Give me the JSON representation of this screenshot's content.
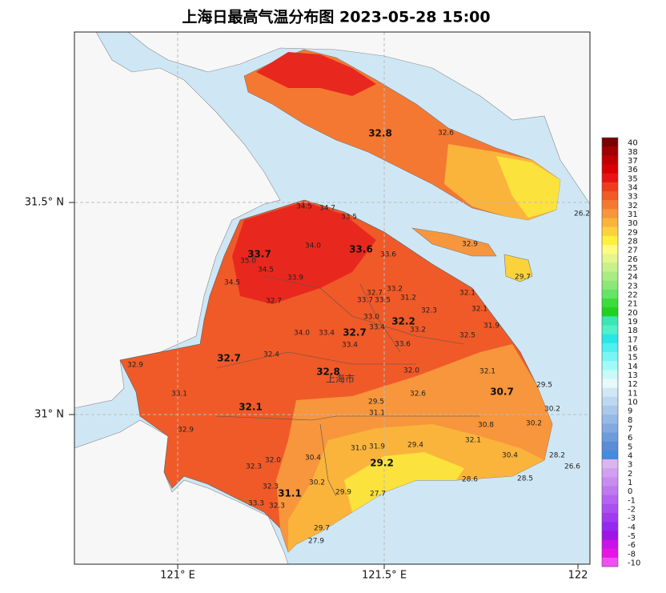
{
  "title": "上海日最高气温分布图 2023-05-28 15:00",
  "map": {
    "lat_labels": [
      "31.5° N",
      "31° N"
    ],
    "lon_labels": [
      "121° E",
      "121.5° E",
      "122"
    ],
    "city_label": "上海市",
    "stations": [
      {
        "label": "32.8",
        "bold": true
      },
      {
        "label": "32.6",
        "bold": false
      },
      {
        "label": "26.2",
        "bold": false
      },
      {
        "label": "32.9",
        "bold": false
      },
      {
        "label": "29.7",
        "bold": false
      },
      {
        "label": "34.5",
        "bold": false
      },
      {
        "label": "34.7",
        "bold": false
      },
      {
        "label": "33.5",
        "bold": false
      },
      {
        "label": "34.0",
        "bold": false
      },
      {
        "label": "33.7",
        "bold": true
      },
      {
        "label": "35.0",
        "bold": false
      },
      {
        "label": "33.6",
        "bold": true
      },
      {
        "label": "33.6",
        "bold": false
      },
      {
        "label": "34.5",
        "bold": false
      },
      {
        "label": "33.9",
        "bold": false
      },
      {
        "label": "34.5",
        "bold": false
      },
      {
        "label": "32.7",
        "bold": false
      },
      {
        "label": "32.7",
        "bold": false
      },
      {
        "label": "33.2",
        "bold": false
      },
      {
        "label": "33.7",
        "bold": false
      },
      {
        "label": "33.5",
        "bold": false
      },
      {
        "label": "31.2",
        "bold": false
      },
      {
        "label": "32.1",
        "bold": false
      },
      {
        "label": "32.3",
        "bold": false
      },
      {
        "label": "32.1",
        "bold": false
      },
      {
        "label": "33.0",
        "bold": false
      },
      {
        "label": "32.2",
        "bold": true
      },
      {
        "label": "31.9",
        "bold": false
      },
      {
        "label": "34.0",
        "bold": false
      },
      {
        "label": "33.4",
        "bold": false
      },
      {
        "label": "32.7",
        "bold": true
      },
      {
        "label": "33.4",
        "bold": false
      },
      {
        "label": "33.2",
        "bold": false
      },
      {
        "label": "32.5",
        "bold": false
      },
      {
        "label": "33.4",
        "bold": false
      },
      {
        "label": "33.6",
        "bold": false
      },
      {
        "label": "32.4",
        "bold": false
      },
      {
        "label": "32.7",
        "bold": true
      },
      {
        "label": "32.9",
        "bold": false
      },
      {
        "label": "32.8",
        "bold": true
      },
      {
        "label": "32.0",
        "bold": false
      },
      {
        "label": "32.1",
        "bold": false
      },
      {
        "label": "29.5",
        "bold": false
      },
      {
        "label": "33.1",
        "bold": false
      },
      {
        "label": "30.7",
        "bold": true
      },
      {
        "label": "32.6",
        "bold": false
      },
      {
        "label": "29.5",
        "bold": false
      },
      {
        "label": "32.1",
        "bold": true
      },
      {
        "label": "30.2",
        "bold": false
      },
      {
        "label": "31.1",
        "bold": false
      },
      {
        "label": "30.8",
        "bold": false
      },
      {
        "label": "30.2",
        "bold": false
      },
      {
        "label": "32.9",
        "bold": false
      },
      {
        "label": "32.1",
        "bold": false
      },
      {
        "label": "31.0",
        "bold": false
      },
      {
        "label": "31.9",
        "bold": false
      },
      {
        "label": "29.4",
        "bold": false
      },
      {
        "label": "28.2",
        "bold": false
      },
      {
        "label": "30.4",
        "bold": false
      },
      {
        "label": "32.0",
        "bold": false
      },
      {
        "label": "30.4",
        "bold": false
      },
      {
        "label": "29.2",
        "bold": true
      },
      {
        "label": "26.6",
        "bold": false
      },
      {
        "label": "32.3",
        "bold": false
      },
      {
        "label": "28.6",
        "bold": false
      },
      {
        "label": "28.5",
        "bold": false
      },
      {
        "label": "30.2",
        "bold": false
      },
      {
        "label": "32.3",
        "bold": false
      },
      {
        "label": "31.1",
        "bold": true
      },
      {
        "label": "29.9",
        "bold": false
      },
      {
        "label": "27.7",
        "bold": false
      },
      {
        "label": "33.3",
        "bold": false
      },
      {
        "label": "32.3",
        "bold": false
      },
      {
        "label": "29.7",
        "bold": false
      },
      {
        "label": "27.9",
        "bold": false
      }
    ]
  },
  "colorbar": {
    "ticks": [
      40,
      38,
      37,
      36,
      35,
      34,
      33,
      32,
      31,
      30,
      29,
      28,
      27,
      26,
      25,
      24,
      23,
      22,
      21,
      20,
      19,
      18,
      17,
      16,
      15,
      14,
      13,
      12,
      11,
      10,
      9,
      8,
      7,
      6,
      5,
      4,
      3,
      2,
      1,
      0,
      -1,
      -2,
      -3,
      -4,
      -5,
      -6,
      -8,
      -10
    ],
    "colors": [
      "#7a0000",
      "#a00000",
      "#c00000",
      "#d80000",
      "#e81414",
      "#f03c1e",
      "#f05a28",
      "#f57832",
      "#f7963c",
      "#fab43c",
      "#fcd23c",
      "#fff03c",
      "#fffa82",
      "#e6f58c",
      "#c8f08c",
      "#aaeb82",
      "#8ce678",
      "#64e664",
      "#3cdc3c",
      "#1ed21e",
      "#3ce6b4",
      "#50f0c8",
      "#28e6e6",
      "#50f0f0",
      "#78f5f5",
      "#a0fafa",
      "#c8fafa",
      "#e6fafa",
      "#d2e6f5",
      "#bed7f0",
      "#aac8eb",
      "#96b9e6",
      "#82aae1",
      "#6e9bdc",
      "#5a8cd7",
      "#468cdc",
      "#dcb4f0",
      "#d2a0f0",
      "#c88cf0",
      "#be78f0",
      "#b464f0",
      "#aa50f0",
      "#a03cf0",
      "#9628f0",
      "#a014e6",
      "#c814e6",
      "#e614e6",
      "#f050f0"
    ]
  }
}
